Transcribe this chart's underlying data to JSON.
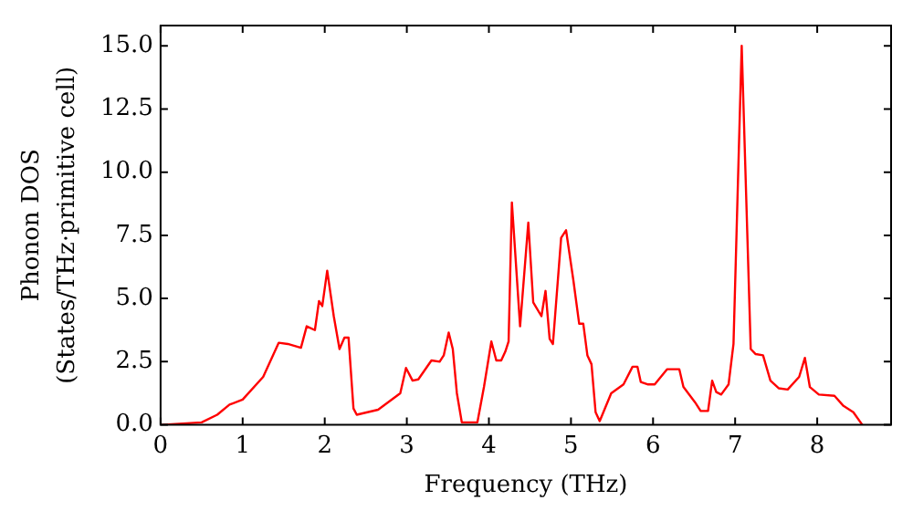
{
  "chart_data": {
    "type": "line",
    "xlabel": "Frequency (THz)",
    "ylabel": [
      "Phonon DOS",
      "(States/THz·primitive cell)"
    ],
    "x": [
      0,
      0.5,
      0.69,
      0.84,
      1.0,
      1.25,
      1.44,
      1.55,
      1.71,
      1.78,
      1.88,
      1.93,
      1.97,
      2.03,
      2.11,
      2.18,
      2.24,
      2.29,
      2.35,
      2.39,
      2.65,
      2.92,
      2.99,
      3.07,
      3.14,
      3.3,
      3.4,
      3.45,
      3.51,
      3.56,
      3.61,
      3.67,
      3.86,
      3.94,
      4.03,
      4.09,
      4.15,
      4.2,
      4.24,
      4.28,
      4.38,
      4.48,
      4.54,
      4.64,
      4.69,
      4.74,
      4.78,
      4.88,
      4.94,
      5.03,
      5.1,
      5.15,
      5.2,
      5.25,
      5.3,
      5.35,
      5.49,
      5.64,
      5.75,
      5.81,
      5.85,
      5.94,
      6.02,
      6.17,
      6.32,
      6.37,
      6.51,
      6.58,
      6.67,
      6.72,
      6.77,
      6.83,
      6.92,
      6.98,
      7.08,
      7.19,
      7.25,
      7.34,
      7.43,
      7.53,
      7.64,
      7.78,
      7.85,
      7.91,
      8.02,
      8.21,
      8.32,
      8.44,
      8.55
    ],
    "series": [
      {
        "color": "#ff0000",
        "values": [
          0,
          0.1,
          0.4,
          0.8,
          1.0,
          1.9,
          3.25,
          3.2,
          3.05,
          3.9,
          3.75,
          4.9,
          4.7,
          6.1,
          4.3,
          3.0,
          3.45,
          3.45,
          0.65,
          0.4,
          0.6,
          1.25,
          2.25,
          1.75,
          1.8,
          2.55,
          2.5,
          2.75,
          3.65,
          3.0,
          1.25,
          0.1,
          0.1,
          1.5,
          3.3,
          2.55,
          2.55,
          2.9,
          3.3,
          8.8,
          3.9,
          8.0,
          4.85,
          4.3,
          5.3,
          3.4,
          3.2,
          7.4,
          7.7,
          5.7,
          4.0,
          4.0,
          2.75,
          2.4,
          0.5,
          0.15,
          1.25,
          1.6,
          2.3,
          2.3,
          1.7,
          1.6,
          1.6,
          2.2,
          2.2,
          1.5,
          0.9,
          0.55,
          0.55,
          1.75,
          1.3,
          1.2,
          1.6,
          3.2,
          15.0,
          3.0,
          2.8,
          2.75,
          1.75,
          1.45,
          1.4,
          1.9,
          2.65,
          1.5,
          1.2,
          1.15,
          0.75,
          0.5,
          0
        ]
      }
    ],
    "xlim": [
      0,
      8.9
    ],
    "xticks": [
      0,
      1,
      2,
      3,
      4,
      5,
      6,
      7,
      8
    ],
    "ylim": [
      0,
      15.8
    ],
    "yticks": [
      {
        "value": 0,
        "label": "0.0"
      },
      {
        "value": 2.5,
        "label": "2.5"
      },
      {
        "value": 5,
        "label": "5.0"
      },
      {
        "value": 7.5,
        "label": "7.5"
      },
      {
        "value": 10,
        "label": "10.0"
      },
      {
        "value": 12.5,
        "label": "12.5"
      },
      {
        "value": 15,
        "label": "15.0"
      }
    ],
    "grid": false,
    "legend": false,
    "marker": "none",
    "line_style": "solid"
  }
}
